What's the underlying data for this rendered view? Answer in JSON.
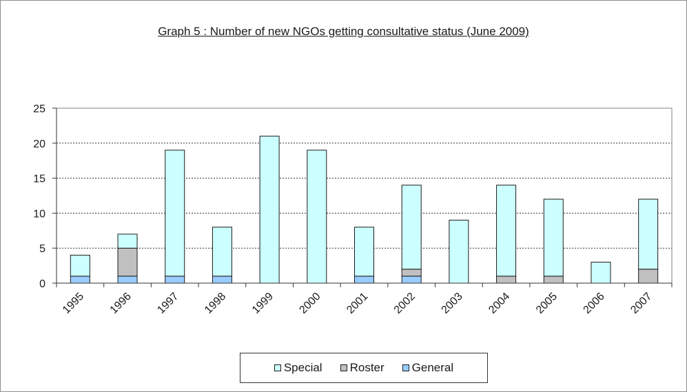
{
  "chart_data": {
    "type": "bar",
    "stacked": true,
    "title": "Graph 5 : Number of new NGOs getting consultative status (June 2009)",
    "xlabel": "",
    "ylabel": "",
    "categories": [
      "1995",
      "1996",
      "1997",
      "1998",
      "1999",
      "2000",
      "2001",
      "2002",
      "2003",
      "2004",
      "2005",
      "2006",
      "2007"
    ],
    "series": [
      {
        "name": "General",
        "color": "#99ccff",
        "values": [
          1,
          1,
          1,
          1,
          0,
          0,
          1,
          1,
          0,
          0,
          0,
          0,
          0
        ]
      },
      {
        "name": "Roster",
        "color": "#c0c0c0",
        "values": [
          0,
          4,
          0,
          0,
          0,
          0,
          0,
          1,
          0,
          1,
          1,
          0,
          2
        ]
      },
      {
        "name": "Special",
        "color": "#ccffff",
        "values": [
          3,
          2,
          18,
          7,
          21,
          19,
          7,
          12,
          9,
          13,
          11,
          3,
          10
        ]
      }
    ],
    "legend_order": [
      "Special",
      "Roster",
      "General"
    ],
    "ylim": [
      0,
      25
    ],
    "yticks": [
      0,
      5,
      10,
      15,
      20,
      25
    ],
    "grid": true,
    "legend_position": "bottom"
  }
}
